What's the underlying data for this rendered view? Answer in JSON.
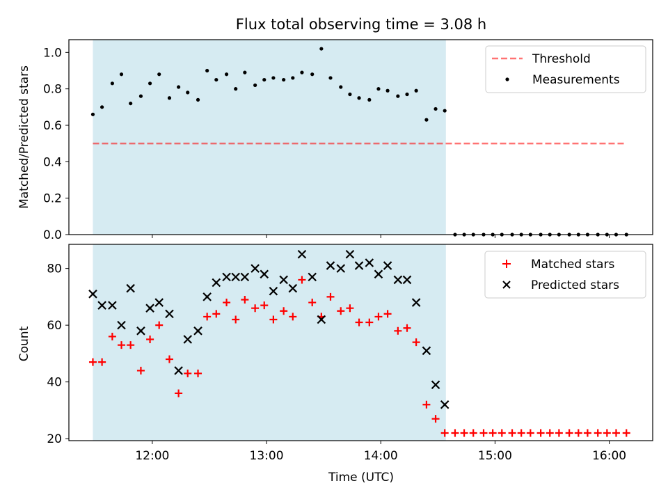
{
  "chart_data": {
    "title": "Flux total observing time = 3.08 h",
    "xlabel": "Time (UTC)",
    "x_ticks": [
      "12:00",
      "13:00",
      "14:00",
      "15:00",
      "16:00"
    ],
    "x_tick_hours": [
      12,
      13,
      14,
      15,
      16
    ],
    "x_range_hours": [
      11.27,
      16.38
    ],
    "observing_window_hours": [
      11.48,
      14.57
    ],
    "colors": {
      "window": "#add8e6",
      "threshold": "#ff0000",
      "measurements": "#000000",
      "matched": "#ff0000",
      "predicted": "#000000"
    },
    "panels": [
      {
        "type": "scatter",
        "ylabel": "Matched/Predicted stars",
        "ylim": [
          0,
          1.07
        ],
        "y_ticks": [
          "0.0",
          "0.2",
          "0.4",
          "0.6",
          "0.8",
          "1.0"
        ],
        "y_tick_values": [
          0,
          0.2,
          0.4,
          0.6,
          0.8,
          1.0
        ],
        "legend": [
          "Threshold",
          "Measurements"
        ],
        "threshold": {
          "value": 0.5,
          "x_range_hours": [
            11.48,
            16.13
          ]
        },
        "series": [
          {
            "name": "Measurements",
            "x_hours": [
              11.48,
              11.56,
              11.65,
              11.73,
              11.81,
              11.9,
              11.98,
              12.06,
              12.15,
              12.23,
              12.31,
              12.4,
              12.48,
              12.56,
              12.65,
              12.73,
              12.81,
              12.9,
              12.98,
              13.06,
              13.15,
              13.23,
              13.31,
              13.4,
              13.48,
              13.56,
              13.65,
              13.73,
              13.81,
              13.9,
              13.98,
              14.06,
              14.15,
              14.23,
              14.31,
              14.4,
              14.48,
              14.56,
              14.65,
              14.73,
              14.81,
              14.9,
              14.98,
              15.06,
              15.15,
              15.23,
              15.31,
              15.4,
              15.48,
              15.56,
              15.65,
              15.73,
              15.81,
              15.9,
              15.98,
              16.06,
              16.15
            ],
            "values": [
              0.66,
              0.7,
              0.83,
              0.88,
              0.72,
              0.76,
              0.83,
              0.88,
              0.75,
              0.81,
              0.78,
              0.74,
              0.9,
              0.85,
              0.88,
              0.8,
              0.89,
              0.82,
              0.85,
              0.86,
              0.85,
              0.86,
              0.89,
              0.88,
              1.02,
              0.86,
              0.81,
              0.77,
              0.75,
              0.74,
              0.8,
              0.79,
              0.76,
              0.77,
              0.79,
              0.63,
              0.69,
              0.68,
              0,
              0,
              0,
              0,
              0,
              0,
              0,
              0,
              0,
              0,
              0,
              0,
              0,
              0,
              0,
              0,
              0,
              0,
              0
            ]
          }
        ]
      },
      {
        "type": "scatter",
        "ylabel": "Count",
        "ylim": [
          19.3,
          88.5
        ],
        "y_ticks": [
          "20",
          "40",
          "60",
          "80"
        ],
        "y_tick_values": [
          20,
          40,
          60,
          80
        ],
        "legend": [
          "Matched stars",
          "Predicted stars"
        ],
        "series": [
          {
            "name": "Matched stars",
            "marker": "+",
            "x_hours": [
              11.48,
              11.56,
              11.65,
              11.73,
              11.81,
              11.9,
              11.98,
              12.06,
              12.15,
              12.23,
              12.31,
              12.4,
              12.48,
              12.56,
              12.65,
              12.73,
              12.81,
              12.9,
              12.98,
              13.06,
              13.15,
              13.23,
              13.31,
              13.4,
              13.48,
              13.56,
              13.65,
              13.73,
              13.81,
              13.9,
              13.98,
              14.06,
              14.15,
              14.23,
              14.31,
              14.4,
              14.48,
              14.56,
              14.65,
              14.73,
              14.81,
              14.9,
              14.98,
              15.06,
              15.15,
              15.23,
              15.31,
              15.4,
              15.48,
              15.56,
              15.65,
              15.73,
              15.81,
              15.9,
              15.98,
              16.06,
              16.15
            ],
            "values": [
              47,
              47,
              56,
              53,
              53,
              44,
              55,
              60,
              48,
              36,
              43,
              43,
              63,
              64,
              68,
              62,
              69,
              66,
              67,
              62,
              65,
              63,
              76,
              68,
              63,
              70,
              65,
              66,
              61,
              61,
              63,
              64,
              58,
              59,
              54,
              32,
              27,
              22,
              22,
              22,
              22,
              22,
              22,
              22,
              22,
              22,
              22,
              22,
              22,
              22,
              22,
              22,
              22,
              22,
              22,
              22,
              22
            ]
          },
          {
            "name": "Predicted stars",
            "marker": "x",
            "x_hours": [
              11.48,
              11.56,
              11.65,
              11.73,
              11.81,
              11.9,
              11.98,
              12.06,
              12.15,
              12.23,
              12.31,
              12.4,
              12.48,
              12.56,
              12.65,
              12.73,
              12.81,
              12.9,
              12.98,
              13.06,
              13.15,
              13.23,
              13.31,
              13.4,
              13.48,
              13.56,
              13.65,
              13.73,
              13.81,
              13.9,
              13.98,
              14.06,
              14.15,
              14.23,
              14.31,
              14.4,
              14.48,
              14.56
            ],
            "values": [
              71,
              67,
              67,
              60,
              73,
              58,
              66,
              68,
              64,
              44,
              55,
              58,
              70,
              75,
              77,
              77,
              77,
              80,
              78,
              72,
              76,
              73,
              85,
              77,
              62,
              81,
              80,
              85,
              81,
              82,
              78,
              81,
              76,
              76,
              68,
              51,
              39,
              32
            ]
          }
        ]
      }
    ]
  }
}
